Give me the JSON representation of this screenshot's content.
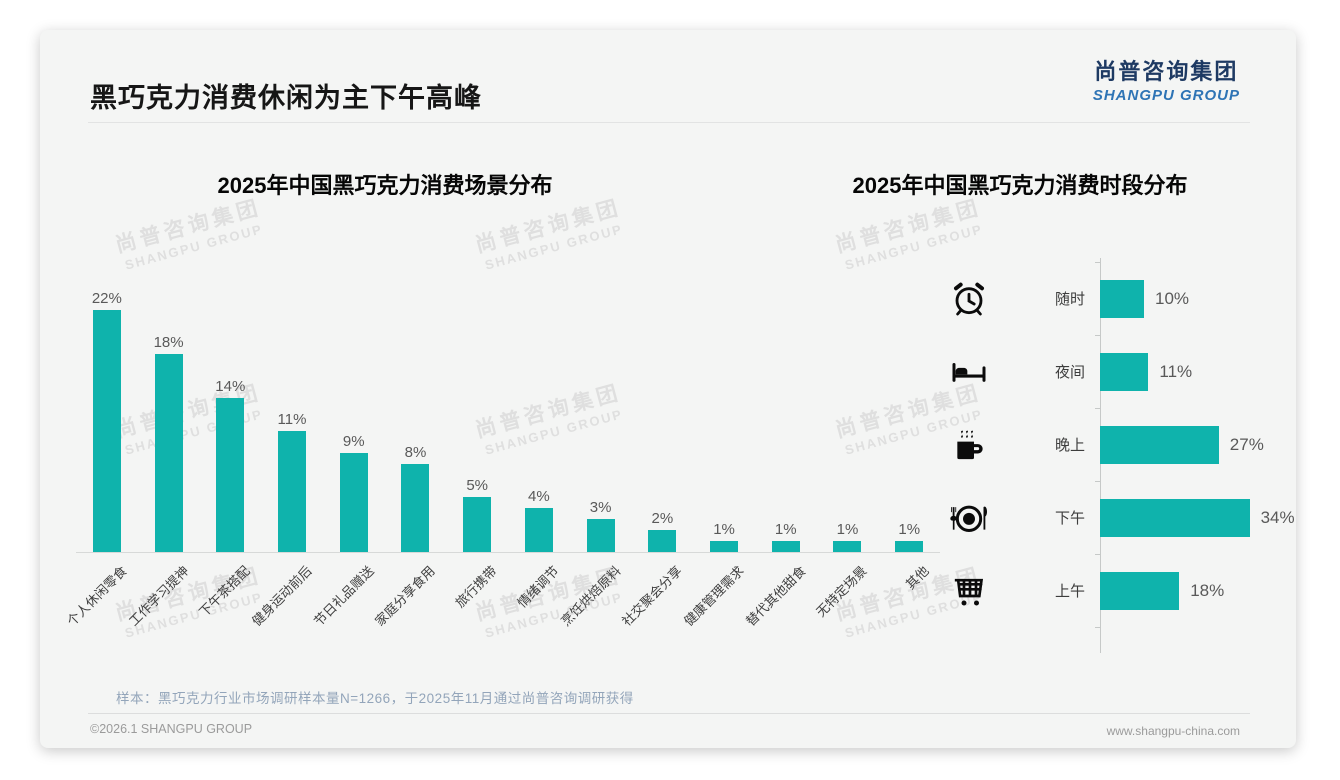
{
  "page": {
    "title": "黑巧克力消费休闲为主下午高峰",
    "logo": {
      "cn": "尚普咨询集团",
      "en": "SHANGPU GROUP"
    },
    "watermark": {
      "cn": "尚普咨询集团",
      "en": "SHANGPU GROUP"
    },
    "footer": {
      "note": "样本：黑巧克力行业市场调研样本量N=1266，于2025年11月通过尚普咨询调研获得",
      "copyright": "©2026.1 SHANGPU GROUP",
      "website": "www.shangpu-china.com"
    },
    "colors": {
      "accent": "#0FB3AC",
      "logo_cn": "#1E3A63",
      "logo_en": "#2E74B5",
      "note_text": "#93A5BA"
    }
  },
  "chart_data": [
    {
      "type": "bar",
      "orientation": "vertical",
      "title": "2025年中国黑巧克力消费场景分布",
      "categories": [
        "个人休闲零食",
        "工作学习提神",
        "下午茶搭配",
        "健身运动前后",
        "节日礼品赠送",
        "家庭分享食用",
        "旅行携带",
        "情绪调节",
        "烹饪烘焙原料",
        "社交聚会分享",
        "健康管理需求",
        "替代其他甜食",
        "无特定场景",
        "其他"
      ],
      "values": [
        22,
        18,
        14,
        11,
        9,
        8,
        5,
        4,
        3,
        2,
        1,
        1,
        1,
        1
      ],
      "unit": "%",
      "ylim": [
        0,
        24
      ],
      "grid": false,
      "bar_color": "#0FB3AC",
      "data_labels": [
        "22%",
        "18%",
        "14%",
        "11%",
        "9%",
        "8%",
        "5%",
        "4%",
        "3%",
        "2%",
        "1%",
        "1%",
        "1%",
        "1%"
      ]
    },
    {
      "type": "bar",
      "orientation": "horizontal",
      "title": "2025年中国黑巧克力消费时段分布",
      "categories": [
        "随时",
        "夜间",
        "晚上",
        "下午",
        "上午"
      ],
      "values": [
        10,
        11,
        27,
        34,
        18
      ],
      "unit": "%",
      "xlim": [
        0,
        40
      ],
      "grid": false,
      "bar_color": "#0FB3AC",
      "data_labels": [
        "10%",
        "11%",
        "27%",
        "34%",
        "18%"
      ],
      "icons": [
        "alarm-clock-icon",
        "bed-icon",
        "coffee-mug-icon",
        "dining-plate-icon",
        "shopping-cart-icon"
      ]
    }
  ]
}
